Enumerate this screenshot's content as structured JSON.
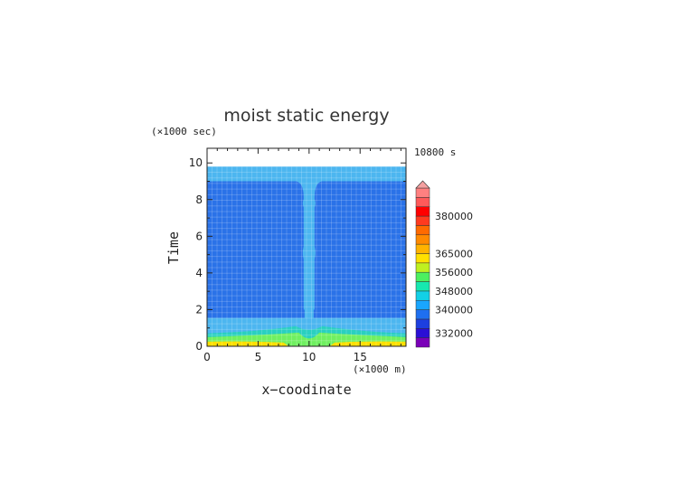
{
  "chart_data": {
    "type": "heatmap",
    "title": "moist static energy",
    "xlabel": "x−coodinate",
    "ylabel": "Time",
    "x_unit": "(×1000 m)",
    "y_unit": "(×1000 sec)",
    "time_stamp": "10800 s",
    "xlim": [
      0,
      19.5
    ],
    "ylim": [
      0,
      10.8
    ],
    "x_ticks": [
      "0",
      "5",
      "10",
      "15"
    ],
    "x_tick_values": [
      0,
      5,
      10,
      15
    ],
    "y_ticks": [
      "0",
      "2",
      "4",
      "6",
      "8",
      "10"
    ],
    "y_tick_values": [
      0,
      2,
      4,
      6,
      8,
      10
    ],
    "data_top_time": 9.8,
    "colorbar": {
      "labels": [
        "332000",
        "340000",
        "348000",
        "356000",
        "365000",
        "380000"
      ],
      "label_levels": [
        332000,
        340000,
        348000,
        356000,
        365000,
        380000
      ],
      "band_colors": [
        "#7a00b8",
        "#2a0fd6",
        "#1d3fe0",
        "#1e6ff0",
        "#19a6ff",
        "#12d0e6",
        "#17e8b0",
        "#4cf060",
        "#bff020",
        "#ffe000",
        "#ffb300",
        "#ff8a00",
        "#ff6a00",
        "#ff3a1f",
        "#ff0000",
        "#ff5a5a",
        "#ff8080"
      ],
      "over_color": "#f4a0a0"
    },
    "fields": {
      "background_band": {
        "level": 340000,
        "color": "#4cb6f0",
        "time": [
          0,
          9.8
        ]
      },
      "upper_layer": {
        "level": 338000,
        "color": "#2a72e8",
        "time": [
          2.0,
          9.0
        ]
      },
      "plume": {
        "level": 340000,
        "color": "#4cb6f0",
        "x_center": 10.0,
        "time": [
          0,
          9.0
        ]
      },
      "surface_layer_1": {
        "level": 344000,
        "color": "#29d0c0",
        "time": [
          0,
          1.0
        ]
      },
      "surface_layer_2": {
        "level": 352000,
        "color": "#6ff060",
        "time": [
          0,
          0.6
        ]
      },
      "surface_layer_3": {
        "level": 356000,
        "color": "#ffe000",
        "time": [
          0,
          0.25
        ]
      }
    }
  }
}
